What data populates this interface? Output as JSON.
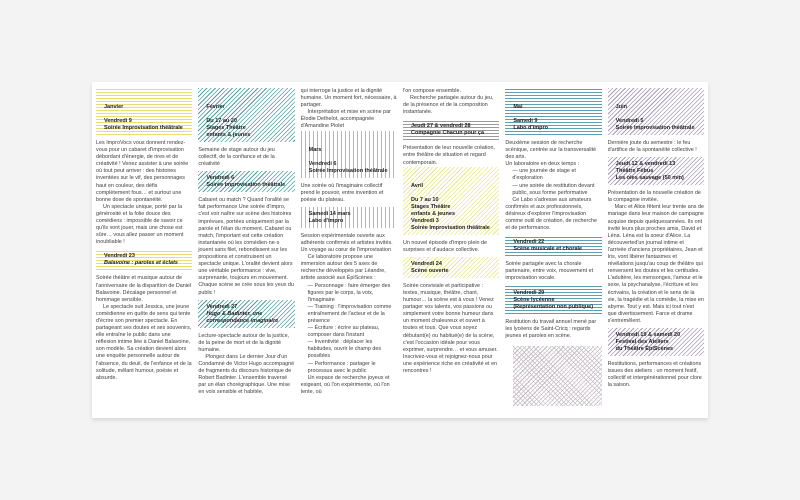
{
  "colors": {
    "yellow-h": "#e8df6c",
    "teal-d": "#4f9ea3",
    "pink-v": "#d7a3b8",
    "yellow-d": "#ebe68c",
    "teal-h": "#5e9fb3",
    "purple-d": "#a89bb9",
    "gray-h": "#9a9a9a",
    "gray-d": "#c4bcc4"
  },
  "columns": [
    {
      "items": [
        {
          "kind": "header",
          "month": true,
          "pattern": "yellow-h",
          "lines": [
            {
              "t": "Janvier",
              "m": true
            },
            {
              "t": "Vendredi 9"
            },
            {
              "t": "Soirée Improvisation théâtrale"
            }
          ]
        },
        {
          "kind": "p",
          "text": "Les ImproVocs vous donnent rendez-vous pour un cabaret d'improvisation débordant d'énergie, de rires et de créativité ! Venez assister à une soirée où tout peut arriver : des histoires inventées sur le vif, des personnages haut en couleur, des défis complètement fous… et surtout une bonne dose de spontanéité."
        },
        {
          "kind": "p",
          "style": "ind",
          "text": "Un spectacle unique, porté par la générosité et la folie douce des comédiens : impossible de savoir ce qu'ils vont jouer, mais une chose est sûre… vous allez passer un moment inoubliable !"
        },
        {
          "kind": "header",
          "pattern": "yellow-h",
          "lines": [
            {
              "t": "Vendredi 23"
            },
            {
              "t": "Balavoine : paroles et éclats",
              "i": true
            }
          ]
        },
        {
          "kind": "p",
          "text": "Soirée théâtre et musique autour de l'anniversaire de la disparition de Daniel Balavoine. Décalage personnel et hommage sensible."
        },
        {
          "kind": "p",
          "style": "ind",
          "text": "Le spectacle suit Jessica, une jeune comédienne en quête de sens qui tente d'écrire son premier spectacle. En partageant ses doutes et ses souvenirs, elle entraîne le public dans une réflexion intime liée à Daniel Balavoine, son modèle. Sa création devient alors une enquête personnelle autour de l'absence, du deuil, de l'enfance et de la solitude, mêlant humour, poésie et absurde."
        }
      ]
    },
    {
      "items": [
        {
          "kind": "header",
          "month": true,
          "pattern": "teal-d",
          "lines": [
            {
              "t": "Février",
              "m": true
            },
            {
              "t": "Du 17 au 20"
            },
            {
              "t": "Stages Théâtre"
            },
            {
              "t": "enfants & jeunes"
            }
          ]
        },
        {
          "kind": "p",
          "text": "Semaine de stage autour du jeu collectif, de la confiance et de la créativité"
        },
        {
          "kind": "header",
          "pattern": "teal-d",
          "lines": [
            {
              "t": "Vendredi 6"
            },
            {
              "t": "Soirée Improvisation théâtrale"
            }
          ]
        },
        {
          "kind": "p",
          "text": "Cabaret ou match ? Quand l'oralité se fait performance Une soirée d'impro, c'est voir naître sur scène des histoires imprévues, portées uniquement par la parole et l'élan du moment. Cabaret ou match, l'important est cette création instantanée où les comédien·ne·s jouent sans filet, rebondissent sur les propositions et construisent un spectacle unique. L'oralité devient alors une véritable performance : vive, surprenante, toujours en mouvement. Chaque scène se crée sous les yeux du public !"
        },
        {
          "kind": "header",
          "pattern": "teal-d",
          "lines": [
            {
              "t": "Vendredi 27"
            },
            {
              "t": "Hugo & Badinter, une correspondance imaginaire",
              "i": true
            }
          ]
        },
        {
          "kind": "p",
          "text": "Lecture-spectacle autour de la justice, de la peine de mort et de la dignité humaine."
        },
        {
          "kind": "p",
          "style": "ind",
          "text": "Plongez dans Le dernier Jour d'un Condamné de Victor Hugo accompagné de fragments du discours historique de Robert Badinter. L'ensemble traversé par un élan chorégraphique. Une mise en voix sensible et habitée,"
        }
      ]
    },
    {
      "items": [
        {
          "kind": "p",
          "text": "qui interroge la justice et la dignité humaine. Un moment fort, nécessaire, à partager."
        },
        {
          "kind": "p",
          "style": "ind",
          "text": "Interprétation et mise en scène par Élodie Dethelot, accompagnée d'Amandine Piolet"
        },
        {
          "kind": "header",
          "month": true,
          "pattern": "pink-v",
          "lines": [
            {
              "t": "Mars",
              "m": true
            },
            {
              "t": "Vendredi 6"
            },
            {
              "t": "Soirée Improvisation théâtrale"
            }
          ]
        },
        {
          "kind": "p",
          "text": "Une soirée où l'imaginaire collectif prend le pouvoir, entre invention et poésie du plateau."
        },
        {
          "kind": "header",
          "pattern": "pink-v",
          "lines": [
            {
              "t": "Samedi 14 mars"
            },
            {
              "t": "Labo d'impro"
            }
          ]
        },
        {
          "kind": "p",
          "text": "Session expérimentale ouverte aux adhérents confirmés et artistes invités. Un voyage au cœur de l'improvisation"
        },
        {
          "kind": "p",
          "style": "ind",
          "text": "Ce laboratoire propose une immersion autour des 5 axes de recherche développés par Léandre, artiste associé aux ÉpiScènes :"
        },
        {
          "kind": "p",
          "style": "dash",
          "text": "— Personnage : faire émerger des figures par le corps, la voix, l'imaginaire"
        },
        {
          "kind": "p",
          "style": "dash",
          "text": "— Training : l'improvisation comme entraînement de l'acteur et de la présence"
        },
        {
          "kind": "p",
          "style": "dash",
          "text": "— Écriture : écrire au plateau, composer dans l'instant"
        },
        {
          "kind": "p",
          "style": "dash",
          "text": "— Inventivité : déplacer les habitudes, ouvrir le champ des possibles"
        },
        {
          "kind": "p",
          "style": "dash",
          "text": "— Performance : partager le processus avec le public"
        },
        {
          "kind": "p",
          "style": "ind",
          "text": "Un espace de recherche joyeux et exigeant, où l'on expérimente, où l'on tente, où"
        }
      ]
    },
    {
      "items": [
        {
          "kind": "p",
          "text": "l'on compose ensemble."
        },
        {
          "kind": "p",
          "style": "ind",
          "text": "Recherche partagée autour du jeu, de la présence et de la composition instantanée."
        },
        {
          "kind": "header",
          "pattern": "gray-h",
          "lines": [
            {
              "t": "Jeudi 27 & vendredi 28"
            },
            {
              "t": "Compagnie Chacun pour ça"
            }
          ]
        },
        {
          "kind": "p",
          "text": "Présentation de leur nouvelle création, entre théâtre de situation et regard contemporain."
        },
        {
          "kind": "header",
          "month": true,
          "pattern": "yellow-d",
          "lines": [
            {
              "t": "Avril",
              "m": true
            },
            {
              "t": "Du 7 au 10"
            },
            {
              "t": "Stages Théâtre"
            },
            {
              "t": "enfants & jeunes"
            },
            {
              "t": " "
            },
            {
              "t": "Vendredi 3"
            },
            {
              "t": "Soirée Improvisation théâtrale"
            }
          ]
        },
        {
          "kind": "p",
          "text": "Un nouvel épisode d'impro plein de surprises et d'audace collective."
        },
        {
          "kind": "header",
          "pattern": "yellow-d",
          "lines": [
            {
              "t": "Vendredi 24"
            },
            {
              "t": "Scène ouverte"
            }
          ]
        },
        {
          "kind": "p",
          "text": "Soirée conviviale et participative : textes, musique, théâtre, chant, humour… la scène est à vous ! Venez partager vos talents, vos passions ou simplement votre bonne humeur dans un moment chaleureux et ouvert à toutes et tous. Que vous soyez débutant(e) ou habitué(e) de la scène, c'est l'occasion idéale pour vous exprimer, surprendre… et vous amuser. Inscrivez-vous et rejoignez-nous pour une expérience riche en créativité et en rencontres !"
        }
      ]
    },
    {
      "items": [
        {
          "kind": "header",
          "month": true,
          "pattern": "teal-h",
          "lines": [
            {
              "t": "Mai",
              "m": true
            },
            {
              "t": "Samedi 9"
            },
            {
              "t": "Labo d'impro"
            }
          ]
        },
        {
          "kind": "p",
          "text": "Deuxième session de recherche scénique, centrée sur la transversalité des arts."
        },
        {
          "kind": "p",
          "text": "Un laboratoire en deux temps :"
        },
        {
          "kind": "p",
          "style": "dash",
          "text": "— une journée de stage et d'exploration"
        },
        {
          "kind": "p",
          "style": "dash",
          "text": "— une soirée de restitution devant public, sous forme performative"
        },
        {
          "kind": "p",
          "style": "ind",
          "text": "Ce Labo s'adresse aux amateurs confirmés et aux professionnels, désireux d'explorer l'improvisation comme outil de création, de recherche et de performance."
        },
        {
          "kind": "header",
          "pattern": "teal-h",
          "lines": [
            {
              "t": "Vendredi 22"
            },
            {
              "t": "Scène musicale et chorale"
            }
          ]
        },
        {
          "kind": "p",
          "text": "Soirée partagée avec la chorale partenaire, entre voix, mouvement et improvisation vocale."
        },
        {
          "kind": "header",
          "pattern": "teal-h",
          "lines": [
            {
              "t": "Vendredi 29"
            },
            {
              "t": "Scène lycéenne"
            },
            {
              "t": "(Représentation non publique)"
            }
          ]
        },
        {
          "kind": "p",
          "text": "Restitution du travail annuel mené par les lycéens de Saint-Cricq : regards jeunes et paroles en scène."
        },
        {
          "kind": "deco",
          "pattern": "gray-d"
        }
      ]
    },
    {
      "items": [
        {
          "kind": "header",
          "month": true,
          "pattern": "purple-d",
          "lines": [
            {
              "t": "Juin",
              "m": true
            },
            {
              "t": "Vendredi 5"
            },
            {
              "t": "Soirée Improvisation théâtrale"
            }
          ]
        },
        {
          "kind": "p",
          "text": "Dernière joute du semestre : le feu d'artifice de la spontanéité collective !"
        },
        {
          "kind": "header",
          "pattern": "purple-d",
          "lines": [
            {
              "t": "Jeudi 12 & vendredi 13"
            },
            {
              "t": "Théâtre Fébus"
            },
            {
              "t": "Les oies sauvage (50 min)"
            }
          ]
        },
        {
          "kind": "p",
          "text": "Présentation de la nouvelle création de la compagnie invitée."
        },
        {
          "kind": "p",
          "style": "ind",
          "text": "Marc et Alice fêtent leur trente ans de mariage dans leur maison de campagne acquise depuis quelquesannées. Ils ont invité leurs plus proches amis, David et Léna. Léna est la soeur d'Alice. La découverted'un journal intime et l'arrivée d'anciens propriétaires, Jean et Iris, vont libérer fantasmes et révélations jusqu'au coup de théâtre qui renversent les doutes et les certitudes. L'adultère, les mensonges, l'amour et le sexe, la psychanalyse, l'écriture et les écrivains, la création et le sens de la vie, la tragédie et la comédie, la mise en abyme. Tout y est. Mais ici tout n'est que divertissement. Farce et drame s'entremêlent."
        },
        {
          "kind": "header",
          "pattern": "purple-d",
          "lines": [
            {
              "t": "Vendredi 19 & samedi 20"
            },
            {
              "t": "Festival des Ateliers"
            },
            {
              "t": "du Théâtre ÉpiScènes"
            }
          ]
        },
        {
          "kind": "p",
          "text": "Restitutions, performances et créations issues des ateliers : un moment festif, collectif et intergénérationnel pour clore la saison."
        }
      ]
    }
  ]
}
